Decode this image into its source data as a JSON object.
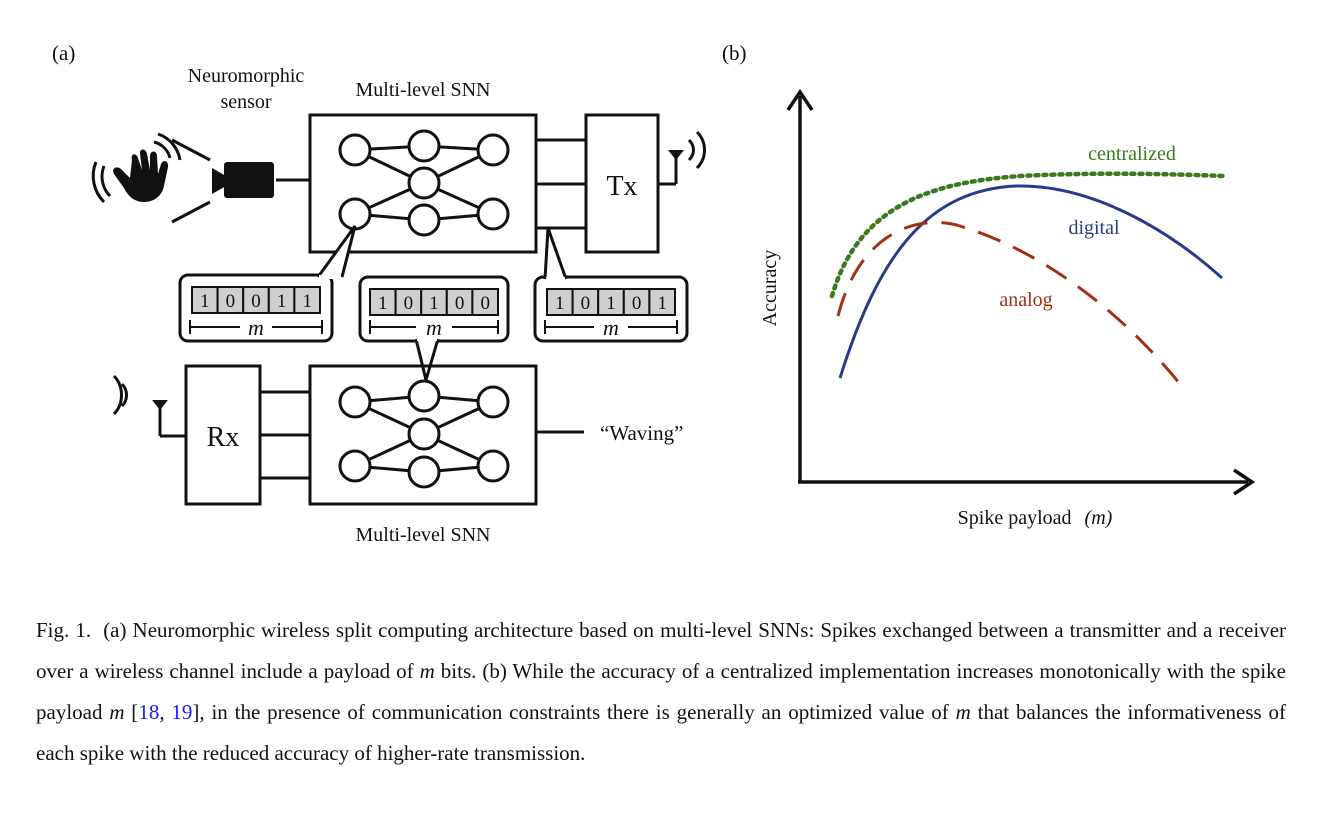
{
  "panel_a": {
    "label": "(a)",
    "sensor_label_line1": "Neuromorphic",
    "sensor_label_line2": "sensor",
    "snn_top_label": "Multi-level SNN",
    "snn_bottom_label": "Multi-level SNN",
    "tx_label": "Tx",
    "rx_label": "Rx",
    "output_label": "“Waving”",
    "payload_symbol": "m",
    "bits_left": [
      "1",
      "0",
      "0",
      "1",
      "1"
    ],
    "bits_middle": [
      "1",
      "0",
      "1",
      "0",
      "0"
    ],
    "bits_right": [
      "1",
      "0",
      "1",
      "0",
      "1"
    ]
  },
  "panel_b": {
    "label": "(b)",
    "xlabel": "Spike payload",
    "xlabel_symbol": "(m)",
    "ylabel": "Accuracy",
    "curve_labels": {
      "centralized": "centralized",
      "digital": "digital",
      "analog": "analog"
    },
    "colors": {
      "centralized": "#3a7a1e",
      "digital": "#2b3a86",
      "analog": "#a33016"
    }
  },
  "chart_data": {
    "type": "line",
    "title": "",
    "xlabel": "Spike payload (m)",
    "ylabel": "Accuracy",
    "ticks": "none",
    "series": [
      {
        "name": "centralized",
        "style": "dotted",
        "trend": "increases monotonically, saturating"
      },
      {
        "name": "digital",
        "style": "solid",
        "trend": "rises to a peak then decreases"
      },
      {
        "name": "analog",
        "style": "dashed",
        "trend": "peaks earlier and lower, then decreases"
      }
    ]
  },
  "caption": {
    "prefix": "Fig. 1.",
    "part1": "(a) Neuromorphic wireless split computing architecture based on multi-level SNNs: Spikes exchanged between a transmitter and a receiver over a wireless channel include a payload of ",
    "m1": "m",
    "part2": " bits. (b) While the accuracy of a centralized implementation increases monotonically with the spike payload ",
    "m2": "m",
    "part3": " [",
    "ref1": "18",
    "part4": ", ",
    "ref2": "19",
    "part5": "], in the presence of communication constraints there is generally an optimized value of ",
    "m3": "m",
    "part6": " that balances the informativeness of each spike with the reduced accuracy of higher-rate transmission."
  }
}
